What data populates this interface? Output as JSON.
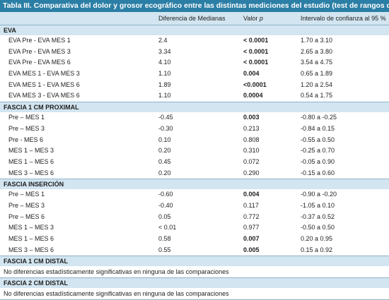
{
  "title": "Tabla III. Comparativa del dolor y grosor ecográfico entre las distintas mediciones del estudio (test de rangos de Wilcoxon).",
  "headers": {
    "comparison": "",
    "diff": "Diferencia de Medianas",
    "pvalue_prefix": "Valor ",
    "pvalue_italic": "p",
    "ci": "Intervalo de confianza al 95 %"
  },
  "sections": [
    {
      "name": "EVA",
      "rows": [
        {
          "label": "EVA Pre - EVA MES 1",
          "diff": "2.4",
          "p": "< 0.0001",
          "bold": true,
          "ci": "1.70 a 3.10"
        },
        {
          "label": "EVA Pre - EVA MES 3",
          "diff": "3.34",
          "p": "< 0.0001",
          "bold": true,
          "ci": "2.65 a 3.80"
        },
        {
          "label": "EVA Pre - EVA MES 6",
          "diff": "4.10",
          "p": "< 0.0001",
          "bold": true,
          "ci": "3.54 a 4.75"
        },
        {
          "label": "EVA MES 1 - EVA MES 3",
          "diff": "1.10",
          "p": "0.004",
          "bold": true,
          "ci": "0.65 a 1.89"
        },
        {
          "label": "EVA MES 1 - EVA MES 6",
          "diff": "1.89",
          "p": "<0.0001",
          "bold": true,
          "ci": "1.20 a 2.54"
        },
        {
          "label": "EVA MES 3 - EVA MES 6",
          "diff": "1.10",
          "p": "0.0004",
          "bold": true,
          "ci": "0.54 a 1.75"
        }
      ]
    },
    {
      "name": "FASCIA 1 CM PROXIMAL",
      "rows": [
        {
          "label": "Pre – MES 1",
          "diff": "-0.45",
          "p": "0.003",
          "bold": true,
          "ci": "-0.80 a -0.25"
        },
        {
          "label": "Pre – MES 3",
          "diff": "-0.30",
          "p": "0.213",
          "bold": false,
          "ci": "-0.84 a 0.15"
        },
        {
          "label": "Pre - MES 6",
          "diff": "0.10",
          "p": "0.808",
          "bold": false,
          "ci": "-0.55 a 0.50"
        },
        {
          "label": "MES 1 – MES 3",
          "diff": "0.20",
          "p": "0.310",
          "bold": false,
          "ci": "-0.25 a 0.70"
        },
        {
          "label": "MES 1 – MES 6",
          "diff": "0.45",
          "p": "0.072",
          "bold": false,
          "ci": "-0.05 a 0.90"
        },
        {
          "label": "MES 3 – MES 6",
          "diff": "0.20",
          "p": "0.290",
          "bold": false,
          "ci": "-0.15 a 0.60"
        }
      ]
    },
    {
      "name": "FASCIA INSERCIÓN",
      "rows": [
        {
          "label": "Pre – MES 1",
          "diff": "-0.60",
          "p": "0.004",
          "bold": true,
          "ci": "-0.90 a -0.20"
        },
        {
          "label": "Pre – MES 3",
          "diff": "-0.40",
          "p": "0.117",
          "bold": false,
          "ci": "-1.05 a 0.10"
        },
        {
          "label": "Pre – MES 6",
          "diff": "0.05",
          "p": "0.772",
          "bold": false,
          "ci": "-0.37 a 0.52"
        },
        {
          "label": "MES 1 – MES 3",
          "diff": "< 0.01",
          "p": "0.977",
          "bold": false,
          "ci": "-0.50 a 0.50"
        },
        {
          "label": "MES 1 – MES 6",
          "diff": "0.58",
          "p": "0.007",
          "bold": true,
          "ci": "0.20 a 0.95"
        },
        {
          "label": "MES 3 – MES 6",
          "diff": "0.55",
          "p": "0.005",
          "bold": true,
          "ci": "0.15 a 0.92"
        }
      ]
    }
  ],
  "notes": [
    {
      "name": "FASCIA 1 CM DISTAL",
      "text": "No diferencias estadísticamente significativas en ninguna de las comparaciones"
    },
    {
      "name": "FASCIA 2 CM DISTAL",
      "text": "No diferencias estadísticamente significativas en ninguna de las comparaciones"
    }
  ]
}
